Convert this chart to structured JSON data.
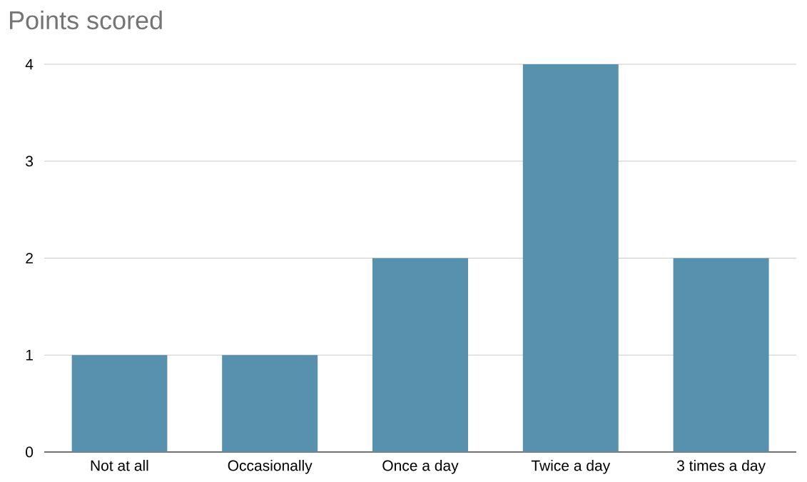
{
  "chart_data": {
    "type": "bar",
    "title": "Points scored",
    "categories": [
      "Not at all",
      "Occasionally",
      "Once a day",
      "Twice a day",
      "3 times a day"
    ],
    "values": [
      1,
      1,
      2,
      4,
      2
    ],
    "color": "#5791ae",
    "ylim": [
      0,
      4
    ],
    "yticks": [
      0,
      1,
      2,
      3,
      4
    ],
    "grid": "y"
  }
}
